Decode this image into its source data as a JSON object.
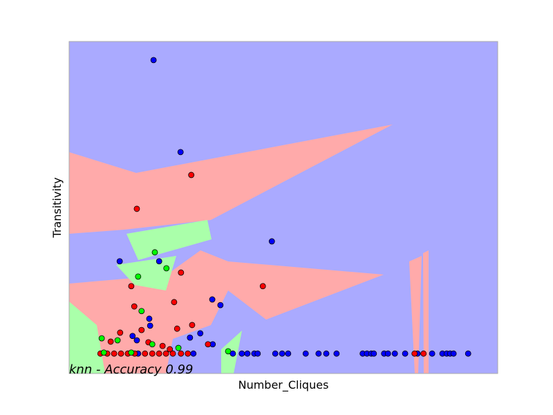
{
  "chart_data": {
    "type": "scatter",
    "title": "knn - Accuracy 0.99",
    "xlabel": "Number_Cliques",
    "ylabel": "Transitivity",
    "xlim": [
      0,
      1
    ],
    "ylim": [
      0,
      1
    ],
    "series": [
      {
        "color": "#0000ff",
        "x": [
          0.197,
          0.26,
          0.473,
          0.118,
          0.21,
          0.334,
          0.353,
          0.187,
          0.189,
          0.306,
          0.148,
          0.282,
          0.158,
          0.335,
          0.161,
          0.29,
          0.382,
          0.403,
          0.416,
          0.432,
          0.44,
          0.481,
          0.497,
          0.511,
          0.552,
          0.582,
          0.6,
          0.624,
          0.685,
          0.695,
          0.705,
          0.711,
          0.735,
          0.744,
          0.76,
          0.784,
          0.813,
          0.847,
          0.871,
          0.881,
          0.889,
          0.897,
          0.931
        ],
        "values": [
          0.944,
          0.667,
          0.398,
          0.338,
          0.338,
          0.223,
          0.206,
          0.165,
          0.144,
          0.121,
          0.113,
          0.108,
          0.1,
          0.088,
          0.06,
          0.06,
          0.06,
          0.06,
          0.06,
          0.06,
          0.06,
          0.06,
          0.06,
          0.06,
          0.06,
          0.06,
          0.06,
          0.06,
          0.06,
          0.06,
          0.06,
          0.06,
          0.06,
          0.06,
          0.06,
          0.06,
          0.06,
          0.06,
          0.06,
          0.06,
          0.06,
          0.06,
          0.06
        ]
      },
      {
        "color": "#ff0000",
        "x": [
          0.285,
          0.158,
          0.261,
          0.452,
          0.145,
          0.152,
          0.245,
          0.287,
          0.252,
          0.169,
          0.119,
          0.097,
          0.324,
          0.185,
          0.218,
          0.235,
          0.073,
          0.089,
          0.105,
          0.121,
          0.137,
          0.153,
          0.177,
          0.194,
          0.21,
          0.226,
          0.242,
          0.261,
          0.277,
          0.806,
          0.827
        ],
        "values": [
          0.598,
          0.496,
          0.304,
          0.263,
          0.263,
          0.202,
          0.215,
          0.146,
          0.135,
          0.131,
          0.123,
          0.096,
          0.088,
          0.094,
          0.083,
          0.073,
          0.06,
          0.06,
          0.06,
          0.06,
          0.06,
          0.06,
          0.06,
          0.06,
          0.06,
          0.06,
          0.06,
          0.06,
          0.06,
          0.06,
          0.06
        ]
      },
      {
        "color": "#00ff00",
        "x": [
          0.2,
          0.227,
          0.161,
          0.169,
          0.076,
          0.113,
          0.194,
          0.255,
          0.371,
          0.145,
          0.081
        ],
        "values": [
          0.365,
          0.317,
          0.292,
          0.188,
          0.106,
          0.1,
          0.088,
          0.077,
          0.067,
          0.063,
          0.063
        ]
      }
    ]
  }
}
